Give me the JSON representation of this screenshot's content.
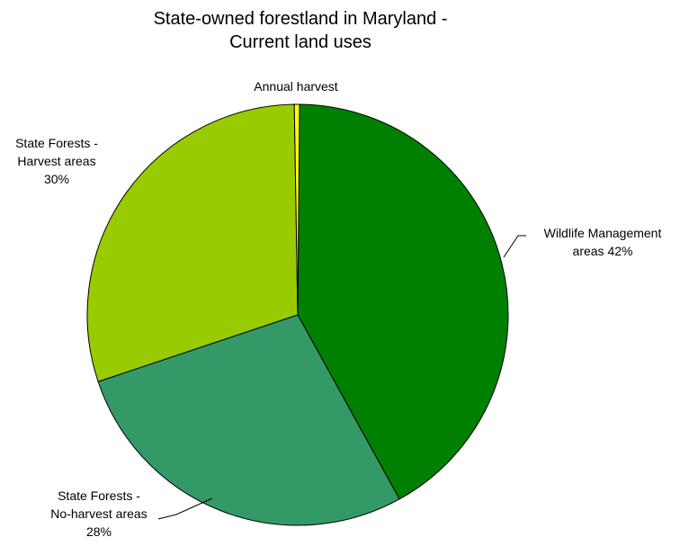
{
  "chart_data": {
    "type": "pie",
    "title_lines": [
      "State-owned forestland in Maryland -",
      "Current land uses"
    ],
    "slices": [
      {
        "name": "Wildlife Management areas",
        "value": 42,
        "label_lines": [
          "Wildlife Management",
          "areas 42%"
        ],
        "color": "#008000"
      },
      {
        "name": "State Forests - No-harvest areas",
        "value": 28,
        "label_lines": [
          "State Forests -",
          "No-harvest areas",
          "28%"
        ],
        "color": "#339966"
      },
      {
        "name": "State Forests - Harvest areas",
        "value": 30,
        "label_lines": [
          "State Forests -",
          "Harvest areas",
          "30%"
        ],
        "color": "#99CC00"
      },
      {
        "name": "Annual harvest",
        "value": 0.4,
        "label_lines": [
          "Annual harvest"
        ],
        "color": "#FFFF00"
      }
    ],
    "legend": "none"
  }
}
